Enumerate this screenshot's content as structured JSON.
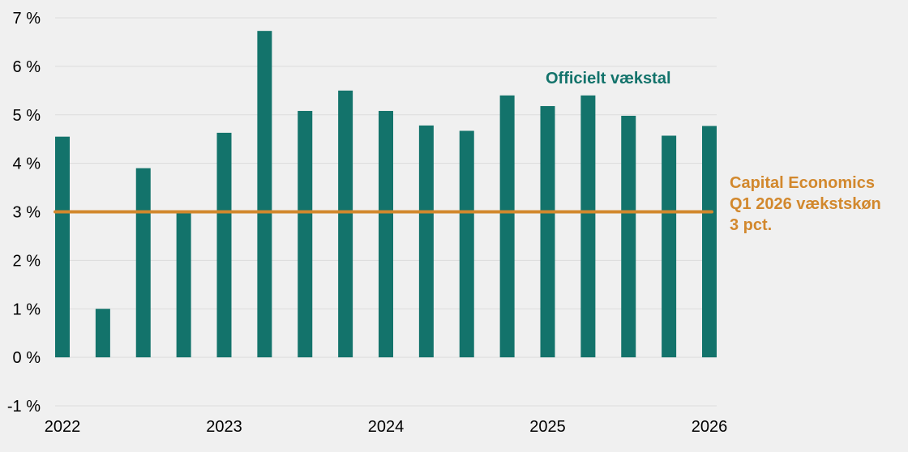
{
  "chart_data": {
    "type": "bar",
    "categories": [
      "2022 Q1",
      "2022 Q2",
      "2022 Q3",
      "2022 Q4",
      "2023 Q1",
      "2023 Q2",
      "2023 Q3",
      "2023 Q4",
      "2024 Q1",
      "2024 Q2",
      "2024 Q3",
      "2024 Q4",
      "2025 Q1",
      "2025 Q2",
      "2025 Q3",
      "2025 Q4",
      "2026 Q1"
    ],
    "values": [
      4.55,
      1.0,
      3.9,
      3.0,
      4.63,
      6.73,
      5.08,
      5.5,
      5.08,
      4.78,
      4.67,
      5.4,
      5.18,
      5.4,
      4.98,
      4.57,
      4.77
    ],
    "ylim": [
      -1,
      7
    ],
    "yticks": [
      {
        "value": -1,
        "label": "-1 %"
      },
      {
        "value": 0,
        "label": "0 %"
      },
      {
        "value": 1,
        "label": "1 %"
      },
      {
        "value": 2,
        "label": "2 %"
      },
      {
        "value": 3,
        "label": "3 %"
      },
      {
        "value": 4,
        "label": "4 %"
      },
      {
        "value": 5,
        "label": "5 %"
      },
      {
        "value": 6,
        "label": "6 %"
      },
      {
        "value": 7,
        "label": "7 %"
      }
    ],
    "xticks": [
      {
        "index": 0,
        "label": "2022"
      },
      {
        "index": 4,
        "label": "2023"
      },
      {
        "index": 8,
        "label": "2024"
      },
      {
        "index": 12,
        "label": "2025"
      },
      {
        "index": 16,
        "label": "2026"
      }
    ],
    "reference_line": {
      "value": 3
    },
    "annotations": {
      "official": "Officielt vækstal",
      "forecast": [
        "Capital Economics",
        "Q1 2026 vækstskøn",
        "3 pct."
      ]
    },
    "colors": {
      "bar": "#13736b",
      "reference": "#d2882d",
      "grid": "#dcdcdc",
      "background": "#f0f0f0"
    },
    "grid": true
  }
}
